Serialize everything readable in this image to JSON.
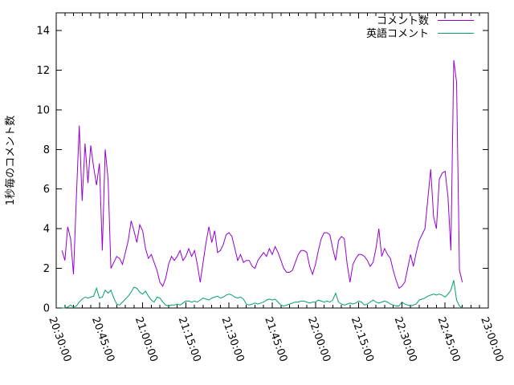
{
  "chart_data": {
    "type": "line",
    "title": "",
    "xlabel": "",
    "ylabel": "1秒毎のコメント数",
    "background_color": "#ffffff",
    "axis_color": "#000000",
    "grid": false,
    "legend_position": "top-right-inside",
    "ylim": [
      0,
      14.9
    ],
    "y_ticks": [
      0,
      2,
      4,
      6,
      8,
      10,
      12,
      14
    ],
    "x_tick_labels": [
      "20:30:00",
      "20:45:00",
      "21:00:00",
      "21:15:00",
      "21:30:00",
      "21:45:00",
      "22:00:00",
      "22:15:00",
      "22:30:00",
      "22:45:00",
      "23:00:00"
    ],
    "x_tick_minutes_after_start": [
      0,
      15,
      30,
      45,
      60,
      75,
      90,
      105,
      120,
      135,
      150
    ],
    "x_minor_tick_step_minutes": 3,
    "x_axis_start_time": "20:30:00",
    "x_axis_end_time": "23:00:00",
    "data_time_range": {
      "start": "20:32:00",
      "end": "22:51:00"
    },
    "legend": [
      {
        "label": "コメント数",
        "color": "#9400d3"
      },
      {
        "label": "英語コメント",
        "color": "#009e73"
      }
    ],
    "series": [
      {
        "name": "コメント数",
        "color": "#9400d3",
        "start_minute_after_20_30": 2,
        "step_minutes": 1,
        "values": [
          2.9,
          2.4,
          4.1,
          3.5,
          1.7,
          5.6,
          9.2,
          5.4,
          8.3,
          6.3,
          8.2,
          7.1,
          6.2,
          7.3,
          2.9,
          8.0,
          6.5,
          2.0,
          2.3,
          2.6,
          2.5,
          2.2,
          2.8,
          3.4,
          4.4,
          3.9,
          3.3,
          4.2,
          3.9,
          3.0,
          2.5,
          2.7,
          2.3,
          1.9,
          1.3,
          1.1,
          1.5,
          2.2,
          2.6,
          2.4,
          2.6,
          2.9,
          2.4,
          2.6,
          3.0,
          2.6,
          2.9,
          2.2,
          1.3,
          2.3,
          3.3,
          4.1,
          3.3,
          3.9,
          2.8,
          2.9,
          3.2,
          3.7,
          3.8,
          3.6,
          3.0,
          2.4,
          2.7,
          2.3,
          2.4,
          2.4,
          2.1,
          2.0,
          2.4,
          2.6,
          2.8,
          2.6,
          3.0,
          2.7,
          3.1,
          2.8,
          2.4,
          2.0,
          1.8,
          1.8,
          1.9,
          2.3,
          2.7,
          2.9,
          2.9,
          2.8,
          2.1,
          1.7,
          2.2,
          2.9,
          3.5,
          3.8,
          3.8,
          3.7,
          3.0,
          2.4,
          3.4,
          3.6,
          3.5,
          2.2,
          1.3,
          2.2,
          2.5,
          2.7,
          2.7,
          2.6,
          2.4,
          2.1,
          2.3,
          3.0,
          4.0,
          2.6,
          3.0,
          2.7,
          2.5,
          1.9,
          1.4,
          1.0,
          1.1,
          1.3,
          2.0,
          2.7,
          2.1,
          2.8,
          3.4,
          3.7,
          4.0,
          5.5,
          7.0,
          4.6,
          4.0,
          6.5,
          6.8,
          6.9,
          5.6,
          2.9,
          12.5,
          11.4,
          1.9,
          1.3
        ]
      },
      {
        "name": "英語コメント",
        "color": "#009e73",
        "start_minute_after_20_30": 2,
        "step_minutes": 1,
        "values": [
          0.0,
          0.0,
          0.05,
          0.15,
          0.05,
          0.1,
          0.3,
          0.45,
          0.55,
          0.5,
          0.55,
          0.6,
          1.0,
          0.5,
          0.55,
          0.9,
          0.75,
          0.9,
          0.5,
          0.2,
          0.15,
          0.3,
          0.45,
          0.6,
          0.8,
          1.05,
          1.0,
          0.8,
          0.7,
          0.85,
          0.6,
          0.4,
          0.3,
          0.55,
          0.5,
          0.3,
          0.15,
          0.1,
          0.15,
          0.15,
          0.2,
          0.15,
          0.25,
          0.35,
          0.35,
          0.3,
          0.35,
          0.3,
          0.4,
          0.5,
          0.45,
          0.4,
          0.5,
          0.55,
          0.6,
          0.5,
          0.55,
          0.65,
          0.7,
          0.65,
          0.55,
          0.5,
          0.55,
          0.45,
          0.2,
          0.15,
          0.2,
          0.25,
          0.2,
          0.25,
          0.3,
          0.4,
          0.45,
          0.4,
          0.45,
          0.3,
          0.15,
          0.1,
          0.15,
          0.2,
          0.25,
          0.3,
          0.3,
          0.35,
          0.35,
          0.3,
          0.25,
          0.3,
          0.3,
          0.4,
          0.35,
          0.3,
          0.35,
          0.3,
          0.4,
          0.75,
          0.3,
          0.2,
          0.15,
          0.2,
          0.25,
          0.2,
          0.25,
          0.35,
          0.3,
          0.15,
          0.2,
          0.3,
          0.4,
          0.3,
          0.25,
          0.3,
          0.35,
          0.3,
          0.2,
          0.15,
          0.1,
          0.1,
          0.3,
          0.2,
          0.15,
          0.1,
          0.15,
          0.2,
          0.4,
          0.45,
          0.5,
          0.6,
          0.65,
          0.7,
          0.65,
          0.7,
          0.65,
          0.55,
          0.7,
          0.9,
          1.4,
          0.4,
          0.1,
          0.0
        ]
      }
    ]
  }
}
